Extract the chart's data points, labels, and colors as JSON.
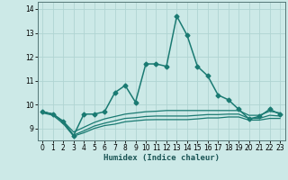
{
  "xlabel": "Humidex (Indice chaleur)",
  "xlim": [
    -0.5,
    23.5
  ],
  "ylim": [
    8.5,
    14.3
  ],
  "yticks": [
    9,
    10,
    11,
    12,
    13,
    14
  ],
  "xticks": [
    0,
    1,
    2,
    3,
    4,
    5,
    6,
    7,
    8,
    9,
    10,
    11,
    12,
    13,
    14,
    15,
    16,
    17,
    18,
    19,
    20,
    21,
    22,
    23
  ],
  "background_color": "#cce9e7",
  "grid_color": "#b0d4d2",
  "line_color": "#1a7a72",
  "series": [
    {
      "x": [
        0,
        1,
        2,
        3,
        4,
        5,
        6,
        7,
        8,
        9,
        10,
        11,
        12,
        13,
        14,
        15,
        16,
        17,
        18,
        19,
        20,
        21,
        22,
        23
      ],
      "y": [
        9.7,
        9.6,
        9.3,
        8.7,
        9.6,
        9.6,
        9.7,
        10.5,
        10.8,
        10.1,
        11.7,
        11.7,
        11.6,
        13.7,
        12.9,
        11.6,
        11.2,
        10.4,
        10.2,
        9.8,
        9.4,
        9.5,
        9.8,
        9.6
      ],
      "marker": "D",
      "markersize": 2.5,
      "linewidth": 1.1
    },
    {
      "x": [
        0,
        1,
        2,
        3,
        4,
        5,
        6,
        7,
        8,
        9,
        10,
        11,
        12,
        13,
        14,
        15,
        16,
        17,
        18,
        19,
        20,
        21,
        22,
        23
      ],
      "y": [
        9.7,
        9.6,
        9.3,
        8.85,
        9.05,
        9.25,
        9.4,
        9.5,
        9.6,
        9.65,
        9.7,
        9.72,
        9.75,
        9.75,
        9.75,
        9.75,
        9.75,
        9.75,
        9.75,
        9.75,
        9.55,
        9.55,
        9.72,
        9.65
      ],
      "marker": null,
      "markersize": 0,
      "linewidth": 0.9
    },
    {
      "x": [
        0,
        1,
        2,
        3,
        4,
        5,
        6,
        7,
        8,
        9,
        10,
        11,
        12,
        13,
        14,
        15,
        16,
        17,
        18,
        19,
        20,
        21,
        22,
        23
      ],
      "y": [
        9.7,
        9.6,
        9.25,
        8.72,
        8.9,
        9.1,
        9.22,
        9.32,
        9.42,
        9.45,
        9.5,
        9.52,
        9.52,
        9.52,
        9.52,
        9.55,
        9.58,
        9.58,
        9.6,
        9.6,
        9.42,
        9.42,
        9.55,
        9.52
      ],
      "marker": null,
      "markersize": 0,
      "linewidth": 0.9
    },
    {
      "x": [
        0,
        1,
        2,
        3,
        4,
        5,
        6,
        7,
        8,
        9,
        10,
        11,
        12,
        13,
        14,
        15,
        16,
        17,
        18,
        19,
        20,
        21,
        22,
        23
      ],
      "y": [
        9.65,
        9.55,
        9.2,
        8.68,
        8.82,
        9.0,
        9.12,
        9.18,
        9.28,
        9.32,
        9.36,
        9.37,
        9.37,
        9.37,
        9.37,
        9.4,
        9.44,
        9.44,
        9.48,
        9.48,
        9.35,
        9.35,
        9.42,
        9.42
      ],
      "marker": null,
      "markersize": 0,
      "linewidth": 0.9
    }
  ]
}
